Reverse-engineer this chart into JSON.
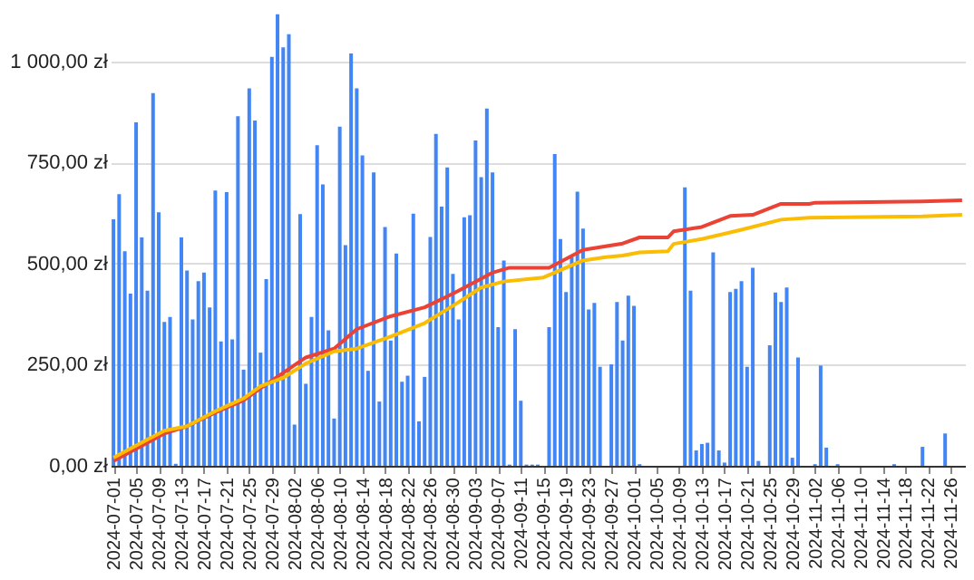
{
  "chart_data": {
    "type": "bar",
    "x": [
      "2024-07-01",
      "2024-07-02",
      "2024-07-03",
      "2024-07-04",
      "2024-07-05",
      "2024-07-06",
      "2024-07-07",
      "2024-07-08",
      "2024-07-09",
      "2024-07-10",
      "2024-07-11",
      "2024-07-12",
      "2024-07-13",
      "2024-07-14",
      "2024-07-15",
      "2024-07-16",
      "2024-07-17",
      "2024-07-18",
      "2024-07-19",
      "2024-07-20",
      "2024-07-21",
      "2024-07-22",
      "2024-07-23",
      "2024-07-24",
      "2024-07-25",
      "2024-07-26",
      "2024-07-27",
      "2024-07-28",
      "2024-07-29",
      "2024-07-30",
      "2024-07-31",
      "2024-08-01",
      "2024-08-02",
      "2024-08-03",
      "2024-08-04",
      "2024-08-05",
      "2024-08-06",
      "2024-08-07",
      "2024-08-08",
      "2024-08-09",
      "2024-08-10",
      "2024-08-11",
      "2024-08-12",
      "2024-08-13",
      "2024-08-14",
      "2024-08-15",
      "2024-08-16",
      "2024-08-17",
      "2024-08-18",
      "2024-08-19",
      "2024-08-20",
      "2024-08-21",
      "2024-08-22",
      "2024-08-23",
      "2024-08-24",
      "2024-08-25",
      "2024-08-26",
      "2024-08-27",
      "2024-08-28",
      "2024-08-29",
      "2024-08-30",
      "2024-08-31",
      "2024-09-01",
      "2024-09-02",
      "2024-09-03",
      "2024-09-04",
      "2024-09-05",
      "2024-09-06",
      "2024-09-07",
      "2024-09-08",
      "2024-09-09",
      "2024-09-10",
      "2024-09-11",
      "2024-09-12",
      "2024-09-13",
      "2024-09-14",
      "2024-09-15",
      "2024-09-16",
      "2024-09-17",
      "2024-09-18",
      "2024-09-19",
      "2024-09-20",
      "2024-09-21",
      "2024-09-22",
      "2024-09-23",
      "2024-09-24",
      "2024-09-25",
      "2024-09-26",
      "2024-09-27",
      "2024-09-28",
      "2024-09-29",
      "2024-09-30",
      "2024-10-01",
      "2024-10-02",
      "2024-10-03",
      "2024-10-04",
      "2024-10-05",
      "2024-10-06",
      "2024-10-07",
      "2024-10-08",
      "2024-10-09",
      "2024-10-10",
      "2024-10-11",
      "2024-10-12",
      "2024-10-13",
      "2024-10-14",
      "2024-10-15",
      "2024-10-16",
      "2024-10-17",
      "2024-10-18",
      "2024-10-19",
      "2024-10-20",
      "2024-10-21",
      "2024-10-22",
      "2024-10-23",
      "2024-10-24",
      "2024-10-25",
      "2024-10-26",
      "2024-10-27",
      "2024-10-28",
      "2024-10-29",
      "2024-10-30",
      "2024-10-31",
      "2024-11-01",
      "2024-11-02",
      "2024-11-03",
      "2024-11-04",
      "2024-11-05",
      "2024-11-06",
      "2024-11-07",
      "2024-11-08",
      "2024-11-09",
      "2024-11-10",
      "2024-11-11",
      "2024-11-12",
      "2024-11-13",
      "2024-11-14",
      "2024-11-15",
      "2024-11-16",
      "2024-11-17",
      "2024-11-18",
      "2024-11-19",
      "2024-11-20",
      "2024-11-21",
      "2024-11-22",
      "2024-11-23",
      "2024-11-24",
      "2024-11-25",
      "2024-11-26",
      "2024-11-27",
      "2024-11-28"
    ],
    "series": [
      {
        "color": "#4285f4",
        "values": [
          610,
          672,
          531,
          426,
          850,
          565,
          433,
          922,
          627,
          356,
          368,
          5,
          565,
          483,
          362,
          457,
          478,
          392,
          681,
          308,
          677,
          313,
          865,
          238,
          934,
          854,
          280,
          462,
          1012,
          1117,
          1035,
          1068,
          102,
          623,
          203,
          368,
          793,
          696,
          335,
          117,
          839,
          546,
          1020,
          934,
          768,
          235,
          726,
          159,
          591,
          310,
          525,
          208,
          223,
          624,
          110,
          220,
          566,
          821,
          641,
          738,
          475,
          362,
          615,
          620,
          805,
          714,
          884,
          726,
          343,
          508,
          3,
          338,
          161,
          3,
          3,
          3,
          0,
          343,
          771,
          561,
          430,
          516,
          678,
          587,
          387,
          403,
          245,
          0,
          251,
          405,
          310,
          421,
          396,
          4,
          0,
          0,
          0,
          0,
          0,
          0,
          0,
          689,
          433,
          38,
          54,
          57,
          528,
          38,
          8,
          430,
          438,
          457,
          245,
          490,
          12,
          0,
          298,
          429,
          405,
          441,
          20,
          268,
          0,
          0,
          4,
          248,
          45,
          0,
          4,
          0,
          0,
          0,
          0,
          0,
          0,
          0,
          0,
          0,
          4,
          0,
          0,
          0,
          0,
          47,
          0,
          0,
          0,
          80,
          0,
          0,
          0
        ]
      },
      {
        "type": "line",
        "color": "#ea4335",
        "x": [
          "2024-07-01",
          "2024-07-07",
          "2024-07-10",
          "2024-07-14",
          "2024-07-19",
          "2024-07-24",
          "2024-07-27",
          "2024-07-31",
          "2024-08-04",
          "2024-08-09",
          "2024-08-13",
          "2024-08-19",
          "2024-08-25",
          "2024-08-30",
          "2024-09-04",
          "2024-09-06",
          "2024-09-09",
          "2024-09-16",
          "2024-09-22",
          "2024-09-26",
          "2024-09-29",
          "2024-10-02",
          "2024-10-07",
          "2024-10-08",
          "2024-10-13",
          "2024-10-18",
          "2024-10-22",
          "2024-10-27",
          "2024-11-01",
          "2024-11-02",
          "2024-11-21",
          "2024-11-28"
        ],
        "values": [
          12,
          57,
          80,
          98,
          132,
          162,
          192,
          230,
          268,
          290,
          338,
          370,
          392,
          426,
          463,
          478,
          490,
          490,
          534,
          543,
          550,
          565,
          565,
          580,
          591,
          618,
          621,
          648,
          648,
          651,
          654,
          657
        ]
      },
      {
        "type": "line",
        "color": "#fbbc04",
        "x": [
          "2024-07-01",
          "2024-07-07",
          "2024-07-10",
          "2024-07-14",
          "2024-07-19",
          "2024-07-24",
          "2024-07-27",
          "2024-07-31",
          "2024-08-04",
          "2024-08-09",
          "2024-08-13",
          "2024-08-19",
          "2024-08-25",
          "2024-08-30",
          "2024-09-04",
          "2024-09-08",
          "2024-09-15",
          "2024-09-22",
          "2024-09-26",
          "2024-09-29",
          "2024-10-02",
          "2024-10-07",
          "2024-10-08",
          "2024-10-13",
          "2024-10-20",
          "2024-10-27",
          "2024-11-01",
          "2024-11-21",
          "2024-11-28"
        ],
        "values": [
          20,
          65,
          87,
          98,
          135,
          167,
          197,
          218,
          253,
          283,
          290,
          320,
          353,
          396,
          441,
          456,
          466,
          508,
          516,
          520,
          528,
          531,
          549,
          561,
          584,
          609,
          614,
          617,
          621
        ]
      }
    ],
    "xlim": [
      "2024-06-30T12:00",
      "2024-11-28T12:00"
    ],
    "xticks": [
      "2024-07-01",
      "2024-07-05",
      "2024-07-09",
      "2024-07-13",
      "2024-07-17",
      "2024-07-21",
      "2024-07-25",
      "2024-07-29",
      "2024-08-02",
      "2024-08-06",
      "2024-08-10",
      "2024-08-14",
      "2024-08-18",
      "2024-08-22",
      "2024-08-26",
      "2024-08-30",
      "2024-09-03",
      "2024-09-07",
      "2024-09-11",
      "2024-09-15",
      "2024-09-19",
      "2024-09-23",
      "2024-09-27",
      "2024-10-01",
      "2024-10-05",
      "2024-10-09",
      "2024-10-13",
      "2024-10-17",
      "2024-10-21",
      "2024-10-25",
      "2024-10-29",
      "2024-11-02",
      "2024-11-06",
      "2024-11-10",
      "2024-11-14",
      "2024-11-18",
      "2024-11-22",
      "2024-11-26"
    ],
    "ylim": [
      0,
      1130
    ],
    "yticks": [
      {
        "value": 0,
        "label": "0,00 zł"
      },
      {
        "value": 250,
        "label": "250,00 zł"
      },
      {
        "value": 500,
        "label": "500,00 zł"
      },
      {
        "value": 750,
        "label": "750,00 zł"
      },
      {
        "value": 1000,
        "label": "1 000,00 zł"
      }
    ],
    "grid": "y",
    "marker": "none",
    "line_style": "solid"
  }
}
